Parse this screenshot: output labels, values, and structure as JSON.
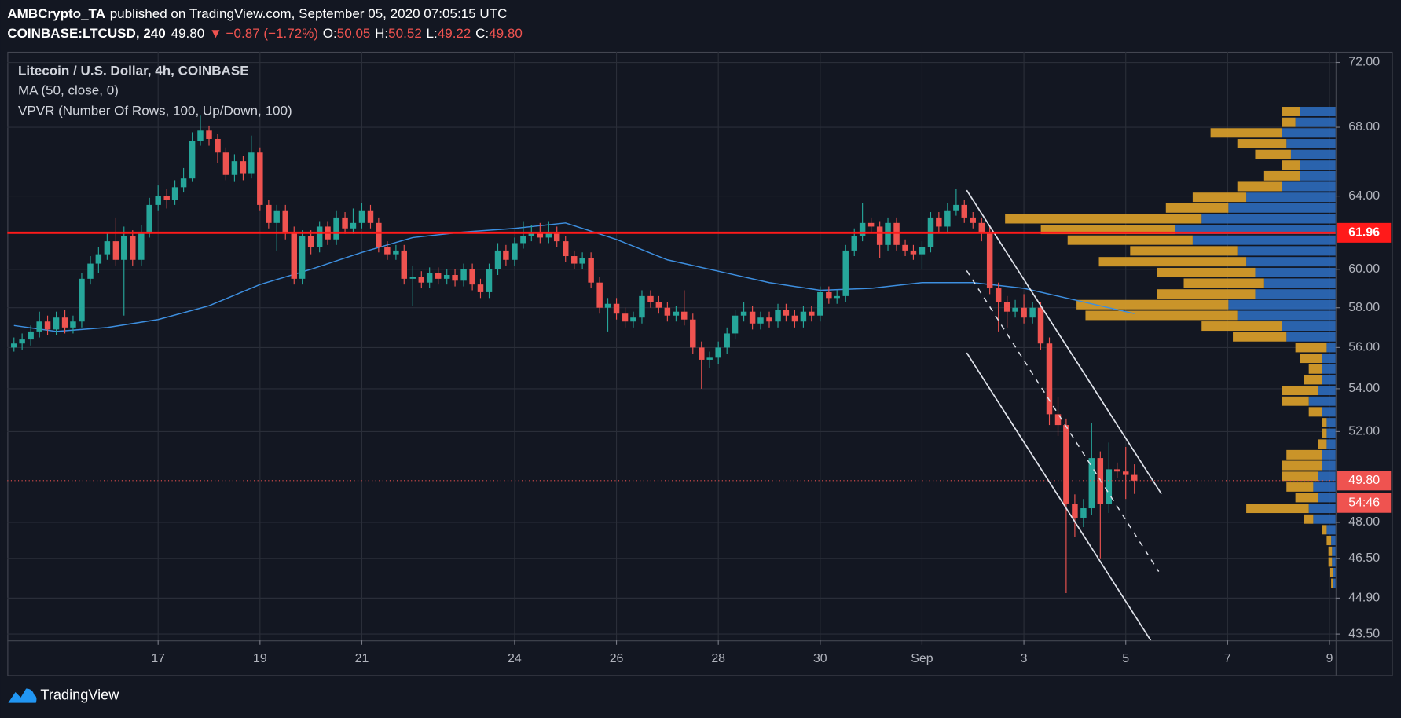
{
  "header": {
    "author": "AMBCrypto_TA",
    "published": "published on TradingView.com, September 05, 2020 07:05:15 UTC",
    "symbol": "COINBASE:LTCUSD, 240",
    "last": "49.80",
    "change": "▼ −0.87 (−1.72%)",
    "o_label": "O:",
    "o": "50.05",
    "h_label": "H:",
    "h": "50.52",
    "l_label": "L:",
    "l": "49.22",
    "c_label": "C:",
    "c": "49.80"
  },
  "brand": "TradingView",
  "chart_data": {
    "type": "candlestick",
    "title": "Litecoin / U.S. Dollar, 4h, COINBASE",
    "log": true,
    "grid": true,
    "up_color": "#26a69a",
    "down_color": "#ef5350",
    "xlim": [
      14.04,
      40.12
    ],
    "ylim": [
      43.26,
      72.68
    ],
    "xticks": [
      17,
      19,
      21,
      24,
      26,
      28,
      30,
      {
        "value": 32,
        "label": "Sep"
      },
      {
        "value": 34,
        "label": "3"
      },
      {
        "value": 36,
        "label": "5"
      },
      {
        "value": 38,
        "label": "7"
      },
      {
        "value": 40,
        "label": "9"
      }
    ],
    "yticks": [
      {
        "value": 72,
        "label": "72.00"
      },
      {
        "value": 68,
        "label": "68.00"
      },
      {
        "value": 64,
        "label": "64.00"
      },
      {
        "value": 60,
        "label": "60.00"
      },
      {
        "value": 58,
        "label": "58.00"
      },
      {
        "value": 56,
        "label": "56.00"
      },
      {
        "value": 54,
        "label": "54.00"
      },
      {
        "value": 52,
        "label": "52.00"
      },
      {
        "value": 48,
        "label": "48.00"
      },
      {
        "value": 46.5,
        "label": "46.50"
      },
      {
        "value": 44.9,
        "label": "44.90"
      },
      {
        "value": 43.5,
        "label": "43.50"
      }
    ],
    "x": [
      14.17,
      14.33,
      14.5,
      14.67,
      14.83,
      15,
      15.17,
      15.33,
      15.5,
      15.67,
      15.83,
      16,
      16.17,
      16.33,
      16.5,
      16.67,
      16.83,
      17,
      17.17,
      17.33,
      17.5,
      17.67,
      17.83,
      18,
      18.17,
      18.33,
      18.5,
      18.67,
      18.83,
      19,
      19.17,
      19.33,
      19.5,
      19.67,
      19.83,
      20,
      20.17,
      20.33,
      20.5,
      20.67,
      20.83,
      21,
      21.17,
      21.33,
      21.5,
      21.67,
      21.83,
      22,
      22.17,
      22.33,
      22.5,
      22.67,
      22.83,
      23,
      23.17,
      23.33,
      23.5,
      23.67,
      23.83,
      24,
      24.17,
      24.33,
      24.5,
      24.67,
      24.83,
      25,
      25.17,
      25.33,
      25.5,
      25.67,
      25.83,
      26,
      26.17,
      26.33,
      26.5,
      26.67,
      26.83,
      27,
      27.17,
      27.33,
      27.5,
      27.67,
      27.83,
      28,
      28.17,
      28.33,
      28.5,
      28.67,
      28.83,
      29,
      29.17,
      29.33,
      29.5,
      29.67,
      29.83,
      30,
      30.17,
      30.33,
      30.5,
      30.67,
      30.83,
      31,
      31.17,
      31.33,
      31.5,
      31.67,
      31.83,
      32,
      32.17,
      32.33,
      32.5,
      32.67,
      32.83,
      33,
      33.17,
      33.33,
      33.5,
      33.67,
      33.83,
      34,
      34.17,
      34.33,
      34.5,
      34.67,
      34.83,
      35,
      35.17,
      35.33,
      35.5,
      35.67,
      35.83,
      36,
      36.17
    ],
    "open": [
      56.0,
      56.2,
      56.4,
      56.8,
      57.3,
      56.9,
      57.5,
      57.0,
      57.3,
      59.5,
      60.3,
      60.8,
      61.5,
      60.5,
      61.8,
      60.5,
      62.0,
      63.5,
      64.0,
      63.8,
      64.5,
      65.0,
      67.2,
      67.8,
      67.3,
      66.5,
      65.2,
      66.0,
      65.3,
      66.5,
      63.5,
      62.5,
      63.2,
      62.0,
      59.5,
      61.8,
      61.2,
      62.3,
      61.6,
      62.8,
      62.2,
      62.5,
      63.2,
      62.5,
      61.2,
      60.8,
      61.0,
      59.5,
      59.6,
      59.3,
      59.8,
      59.5,
      59.7,
      59.4,
      60.0,
      59.2,
      58.8,
      60.0,
      61.0,
      60.5,
      61.4,
      61.8,
      62.0,
      61.7,
      62.0,
      61.5,
      60.7,
      60.3,
      60.6,
      59.3,
      58.0,
      58.2,
      57.7,
      57.3,
      57.5,
      58.6,
      58.3,
      58.0,
      57.6,
      57.8,
      57.4,
      56.0,
      55.4,
      55.5,
      56.0,
      56.7,
      57.6,
      57.8,
      57.2,
      57.5,
      57.3,
      57.9,
      57.6,
      57.3,
      57.8,
      57.6,
      58.8,
      58.5,
      58.6,
      61.0,
      61.8,
      62.5,
      62.3,
      61.3,
      62.5,
      61.3,
      61.0,
      60.8,
      61.2,
      62.8,
      62.3,
      63.2,
      63.5,
      62.8,
      62.5,
      62.0,
      59.0,
      58.3,
      57.8,
      58.0,
      57.5,
      58.0,
      56.2,
      52.8,
      52.3,
      48.8,
      48.2,
      48.6,
      50.8,
      48.8,
      50.3,
      50.2,
      50.05
    ],
    "high": [
      56.5,
      56.7,
      57.1,
      57.8,
      57.6,
      57.8,
      57.9,
      57.6,
      59.8,
      60.7,
      61.2,
      62.0,
      62.8,
      62.3,
      62.1,
      62.4,
      63.9,
      64.6,
      64.4,
      64.9,
      65.6,
      67.7,
      68.7,
      68.1,
      67.6,
      66.8,
      66.4,
      66.3,
      67.5,
      66.8,
      63.8,
      63.5,
      63.5,
      62.3,
      62.1,
      62.1,
      62.6,
      62.6,
      63.2,
      63.1,
      63.3,
      63.6,
      63.5,
      62.8,
      61.5,
      61.3,
      61.3,
      60.2,
      59.9,
      60.1,
      60.1,
      60.0,
      60.0,
      60.3,
      60.3,
      59.5,
      60.3,
      61.4,
      61.3,
      61.7,
      62.6,
      62.4,
      62.5,
      62.6,
      62.3,
      61.8,
      61.0,
      60.9,
      60.9,
      59.6,
      58.5,
      58.5,
      58.0,
      57.8,
      58.9,
      58.9,
      58.6,
      58.3,
      58.1,
      58.9,
      57.7,
      56.3,
      55.8,
      56.3,
      57.0,
      57.9,
      58.3,
      58.1,
      57.8,
      57.8,
      58.2,
      58.2,
      57.9,
      58.1,
      58.1,
      59.1,
      59.1,
      58.9,
      61.3,
      62.2,
      63.6,
      62.8,
      62.6,
      62.8,
      62.8,
      61.6,
      61.3,
      61.5,
      63.1,
      63.1,
      63.6,
      64.4,
      63.8,
      63.1,
      62.8,
      62.3,
      59.3,
      58.6,
      58.4,
      58.7,
      58.3,
      58.3,
      56.5,
      53.6,
      52.6,
      49.2,
      49.0,
      52.4,
      51.1,
      51.5,
      50.6,
      51.3,
      50.52
    ],
    "low": [
      55.8,
      55.9,
      56.1,
      56.5,
      56.6,
      56.6,
      56.7,
      56.7,
      57.0,
      59.2,
      59.8,
      60.5,
      60.2,
      57.6,
      60.2,
      60.2,
      61.7,
      63.2,
      63.3,
      63.5,
      64.2,
      64.8,
      66.9,
      66.9,
      65.9,
      64.9,
      64.8,
      64.9,
      65.0,
      63.2,
      62.2,
      61.0,
      61.6,
      59.2,
      59.2,
      60.8,
      60.9,
      61.3,
      61.3,
      61.9,
      61.9,
      62.2,
      62.2,
      60.9,
      60.5,
      60.5,
      59.2,
      58.1,
      59.0,
      59.0,
      59.2,
      59.2,
      59.1,
      59.1,
      58.9,
      58.5,
      58.5,
      59.7,
      60.2,
      60.2,
      61.1,
      61.5,
      61.4,
      61.4,
      61.2,
      60.4,
      60.0,
      60.0,
      59.0,
      57.7,
      56.8,
      57.4,
      57.0,
      57.0,
      57.2,
      58.0,
      57.7,
      57.3,
      57.3,
      57.1,
      55.7,
      54.0,
      55.0,
      55.2,
      55.7,
      56.4,
      57.3,
      56.9,
      56.9,
      57.0,
      57.0,
      57.3,
      57.0,
      57.0,
      57.3,
      57.3,
      58.2,
      58.2,
      58.3,
      60.7,
      61.5,
      62.0,
      60.6,
      61.0,
      61.0,
      60.7,
      60.5,
      60.0,
      60.9,
      62.0,
      62.0,
      62.9,
      62.5,
      62.2,
      61.5,
      58.7,
      56.8,
      57.0,
      57.5,
      57.2,
      57.2,
      55.9,
      52.3,
      51.8,
      45.1,
      47.4,
      47.8,
      48.3,
      46.5,
      48.4,
      49.9,
      49.0,
      49.22
    ],
    "close": [
      56.2,
      56.4,
      56.8,
      57.3,
      56.9,
      57.5,
      57.0,
      57.3,
      59.5,
      60.3,
      60.8,
      61.5,
      60.5,
      61.8,
      60.5,
      62.0,
      63.5,
      64.0,
      63.8,
      64.5,
      65.0,
      67.2,
      67.8,
      67.3,
      66.5,
      65.2,
      66.0,
      65.3,
      66.5,
      63.5,
      62.5,
      63.2,
      62.0,
      59.5,
      61.8,
      61.2,
      62.3,
      61.6,
      62.8,
      62.2,
      62.5,
      63.2,
      62.5,
      61.2,
      60.8,
      61.0,
      59.5,
      59.6,
      59.3,
      59.8,
      59.5,
      59.7,
      59.4,
      60.0,
      59.2,
      58.8,
      60.0,
      61.0,
      60.5,
      61.4,
      61.8,
      62.0,
      61.7,
      62.0,
      61.5,
      60.7,
      60.3,
      60.6,
      59.3,
      58.0,
      58.2,
      57.7,
      57.3,
      57.5,
      58.6,
      58.3,
      58.0,
      57.6,
      57.8,
      57.4,
      56.0,
      55.4,
      55.5,
      56.0,
      56.7,
      57.6,
      57.8,
      57.2,
      57.5,
      57.3,
      57.9,
      57.6,
      57.3,
      57.8,
      57.6,
      58.8,
      58.5,
      58.6,
      61.0,
      61.8,
      62.5,
      62.3,
      61.3,
      62.5,
      61.3,
      61.0,
      60.8,
      61.2,
      62.8,
      62.3,
      63.2,
      63.5,
      62.8,
      62.5,
      62.0,
      59.0,
      58.3,
      57.8,
      58.0,
      57.5,
      58.0,
      56.2,
      52.8,
      52.3,
      48.8,
      48.2,
      48.6,
      50.8,
      48.8,
      50.3,
      50.2,
      50.05,
      49.8
    ],
    "ma": {
      "name": "MA (50, close, 0)",
      "color": "#3d8fe0",
      "x": [
        14.17,
        15,
        16,
        17,
        18,
        19,
        20,
        21,
        22,
        23,
        24,
        25,
        26,
        27,
        28,
        29,
        30,
        31,
        32,
        33,
        34,
        35,
        36.17
      ],
      "values": [
        57.1,
        56.8,
        57.0,
        57.4,
        58.1,
        59.2,
        60.0,
        60.9,
        61.7,
        62.0,
        62.2,
        62.5,
        61.6,
        60.5,
        59.9,
        59.3,
        58.9,
        59.0,
        59.3,
        59.3,
        59.0,
        58.4,
        57.7
      ]
    },
    "vpvr": {
      "name": "VPVR (Number Of Rows, 100, Up/Down, 100)",
      "up_color": "#2e6cbd",
      "down_color": "#d49b2a",
      "prices": [
        68.95,
        68.3,
        67.66,
        67.02,
        66.39,
        65.77,
        65.15,
        64.54,
        63.93,
        63.33,
        62.73,
        62.14,
        61.56,
        60.98,
        60.4,
        59.83,
        59.27,
        58.71,
        58.16,
        57.61,
        57.07,
        56.53,
        56.0,
        55.47,
        54.95,
        54.43,
        53.92,
        53.41,
        52.91,
        52.41,
        51.92,
        51.43,
        50.95,
        50.47,
        49.99,
        49.52,
        49.06,
        48.6,
        48.14,
        47.69,
        47.24,
        46.79,
        46.35,
        45.92,
        45.49
      ],
      "up": [
        40,
        45,
        60,
        55,
        50,
        40,
        40,
        60,
        100,
        120,
        150,
        180,
        160,
        110,
        100,
        90,
        80,
        90,
        120,
        110,
        60,
        55,
        10,
        15,
        15,
        15,
        20,
        30,
        15,
        10,
        10,
        10,
        15,
        15,
        20,
        25,
        20,
        30,
        25,
        10,
        5,
        4,
        4,
        3,
        3
      ],
      "down": [
        20,
        15,
        80,
        55,
        40,
        20,
        40,
        50,
        60,
        70,
        220,
        150,
        140,
        120,
        165,
        110,
        90,
        110,
        170,
        170,
        90,
        60,
        35,
        25,
        15,
        20,
        40,
        30,
        15,
        5,
        5,
        10,
        40,
        45,
        40,
        30,
        25,
        70,
        10,
        5,
        5,
        4,
        4,
        3,
        2
      ]
    },
    "resistance": {
      "value": 61.96,
      "color": "#ff1a1a"
    },
    "last_price": {
      "value": 49.8,
      "label": "49.80",
      "countdown": "54:46",
      "color": "#ef5350"
    }
  }
}
